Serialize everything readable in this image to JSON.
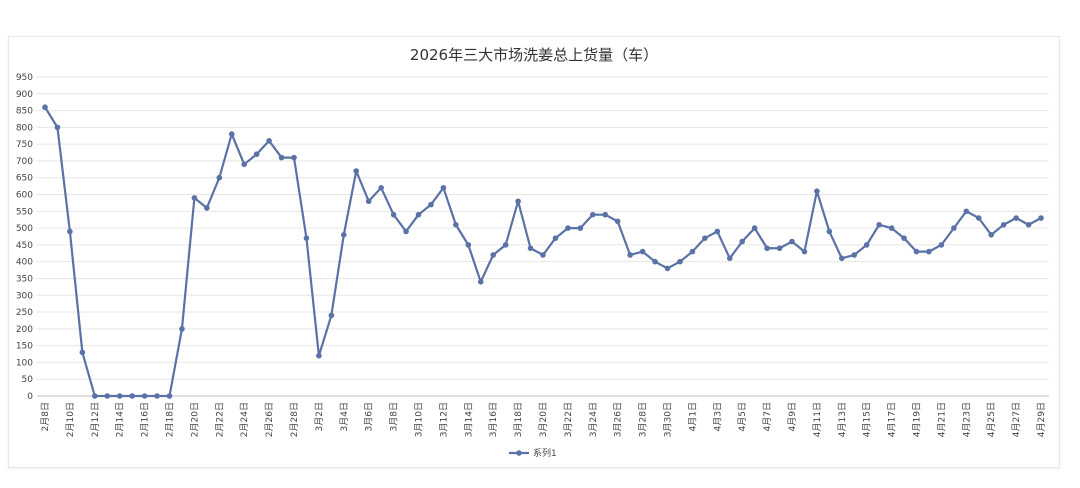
{
  "chart_data": {
    "type": "line",
    "title": "2026年三大市场洗姜总上货量（车）",
    "xlabel": "",
    "ylabel": "",
    "ylim": [
      0,
      950
    ],
    "ytick_step": 50,
    "grid": true,
    "legend_position": "bottom",
    "x_tick_labels": [
      "2月8日",
      "2月10日",
      "2月12日",
      "2月14日",
      "2月16日",
      "2月18日",
      "2月20日",
      "2月22日",
      "2月24日",
      "2月26日",
      "2月28日",
      "3月2日",
      "3月4日",
      "3月6日",
      "3月8日",
      "3月10日",
      "3月12日",
      "3月14日",
      "3月16日",
      "3月18日",
      "3月20日",
      "3月22日",
      "3月24日",
      "3月26日",
      "3月28日",
      "3月30日",
      "4月1日",
      "4月3日",
      "4月5日",
      "4月7日",
      "4月9日",
      "4月11日",
      "4月13日",
      "4月15日",
      "4月17日",
      "4月19日",
      "4月21日",
      "4月23日",
      "4月25日",
      "4月27日",
      "4月29日"
    ],
    "colors": {
      "series": "#5b72a6",
      "grid": "#e6e6e6",
      "axis": "#bfbfbf"
    },
    "series": [
      {
        "name": "系列1",
        "values": [
          860,
          800,
          490,
          130,
          0,
          0,
          0,
          0,
          0,
          0,
          0,
          200,
          590,
          560,
          650,
          780,
          690,
          720,
          760,
          710,
          710,
          470,
          120,
          240,
          480,
          670,
          580,
          620,
          540,
          490,
          540,
          570,
          620,
          510,
          450,
          340,
          420,
          450,
          580,
          440,
          420,
          470,
          500,
          500,
          540,
          540,
          520,
          420,
          430,
          400,
          380,
          400,
          430,
          470,
          490,
          410,
          460,
          500,
          440,
          440,
          460,
          430,
          610,
          490,
          410,
          420,
          450,
          510,
          500,
          470,
          430,
          430,
          450,
          500,
          550,
          530,
          480,
          510,
          530,
          510,
          530
        ]
      }
    ]
  }
}
